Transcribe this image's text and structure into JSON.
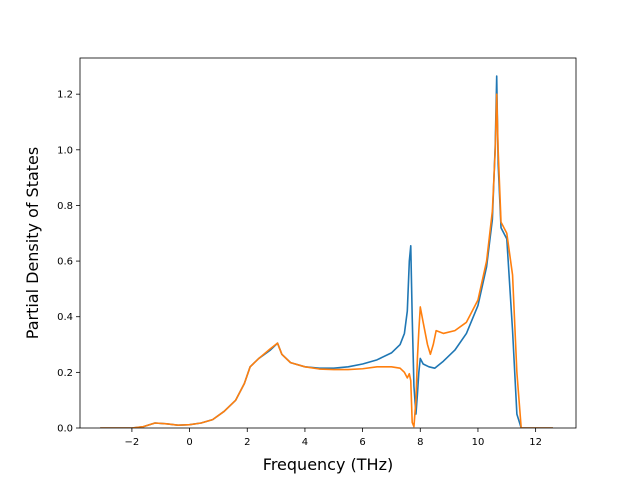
{
  "chart_data": {
    "type": "line",
    "title": "",
    "xlabel": "Frequency (THz)",
    "ylabel": "Partial Density of States",
    "xlim": [
      -3.8,
      13.4
    ],
    "ylim": [
      0.0,
      1.33
    ],
    "xticks": [
      -2,
      0,
      2,
      4,
      6,
      8,
      10,
      12
    ],
    "xtick_labels": [
      "−2",
      "0",
      "2",
      "4",
      "6",
      "8",
      "10",
      "12"
    ],
    "yticks": [
      0.0,
      0.2,
      0.4,
      0.6,
      0.8,
      1.0,
      1.2
    ],
    "ytick_labels": [
      "0.0",
      "0.2",
      "0.4",
      "0.6",
      "0.8",
      "1.0",
      "1.2"
    ],
    "grid": false,
    "series": [
      {
        "color": "#1f77b4",
        "x": [
          -3.1,
          -2.0,
          -1.6,
          -1.2,
          -0.8,
          -0.4,
          0.0,
          0.4,
          0.8,
          1.2,
          1.6,
          1.9,
          2.1,
          2.4,
          2.8,
          3.05,
          3.2,
          3.5,
          4.0,
          4.5,
          5.0,
          5.5,
          6.0,
          6.5,
          7.0,
          7.3,
          7.45,
          7.55,
          7.62,
          7.67,
          7.72,
          7.78,
          7.85,
          7.9,
          7.95,
          8.0,
          8.1,
          8.3,
          8.5,
          8.8,
          9.2,
          9.6,
          10.0,
          10.3,
          10.5,
          10.6,
          10.65,
          10.7,
          10.8,
          11.0,
          11.2,
          11.35,
          11.5,
          12.0,
          12.6
        ],
        "y": [
          0.0,
          0.0,
          0.005,
          0.018,
          0.015,
          0.01,
          0.012,
          0.018,
          0.03,
          0.06,
          0.1,
          0.16,
          0.22,
          0.25,
          0.28,
          0.305,
          0.265,
          0.235,
          0.22,
          0.215,
          0.215,
          0.22,
          0.23,
          0.245,
          0.27,
          0.3,
          0.34,
          0.42,
          0.6,
          0.655,
          0.4,
          0.15,
          0.05,
          0.12,
          0.2,
          0.25,
          0.23,
          0.22,
          0.215,
          0.24,
          0.28,
          0.34,
          0.44,
          0.58,
          0.75,
          1.02,
          1.265,
          0.95,
          0.72,
          0.68,
          0.35,
          0.05,
          0.0,
          0.0,
          0.0
        ]
      },
      {
        "color": "#ff7f0e",
        "x": [
          -3.1,
          -2.0,
          -1.6,
          -1.2,
          -0.8,
          -0.4,
          0.0,
          0.4,
          0.8,
          1.2,
          1.6,
          1.9,
          2.1,
          2.4,
          2.8,
          3.05,
          3.2,
          3.5,
          4.0,
          4.5,
          5.0,
          5.5,
          6.0,
          6.5,
          7.0,
          7.3,
          7.45,
          7.55,
          7.62,
          7.67,
          7.72,
          7.78,
          7.85,
          7.9,
          7.95,
          8.0,
          8.1,
          8.25,
          8.35,
          8.45,
          8.55,
          8.8,
          9.2,
          9.6,
          10.0,
          10.3,
          10.5,
          10.6,
          10.65,
          10.7,
          10.8,
          11.0,
          11.2,
          11.35,
          11.5,
          12.0,
          12.6
        ],
        "y": [
          0.0,
          0.0,
          0.005,
          0.018,
          0.015,
          0.01,
          0.012,
          0.018,
          0.03,
          0.06,
          0.1,
          0.16,
          0.22,
          0.25,
          0.285,
          0.305,
          0.265,
          0.235,
          0.22,
          0.212,
          0.21,
          0.21,
          0.213,
          0.22,
          0.22,
          0.215,
          0.2,
          0.18,
          0.195,
          0.17,
          0.02,
          0.005,
          0.1,
          0.25,
          0.35,
          0.435,
          0.38,
          0.3,
          0.265,
          0.3,
          0.35,
          0.34,
          0.35,
          0.38,
          0.46,
          0.6,
          0.78,
          1.0,
          1.2,
          1.0,
          0.74,
          0.7,
          0.55,
          0.2,
          0.0,
          0.0,
          0.0
        ]
      }
    ]
  }
}
